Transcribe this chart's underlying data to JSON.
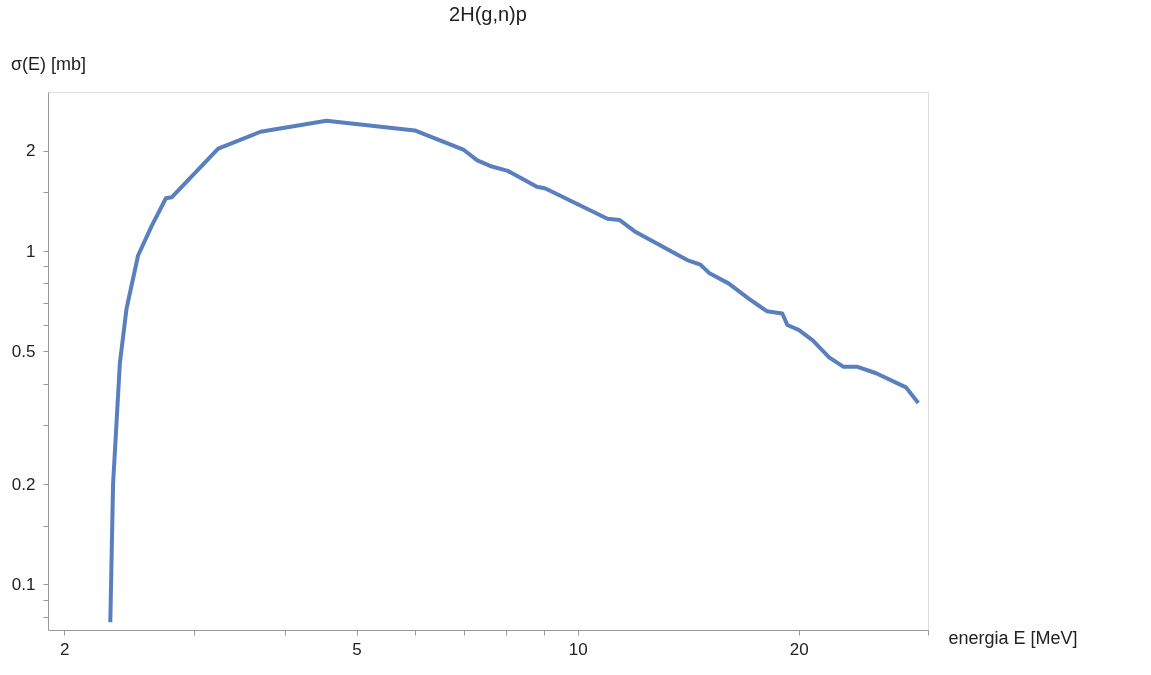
{
  "chart_data": {
    "type": "line",
    "title": "2H(g,n)p",
    "xlabel": "energia E [MeV]",
    "ylabel": "σ(E) [mb]",
    "log": "xy",
    "grid": false,
    "legend": false,
    "marker": "none",
    "line_style": "solid",
    "xlim": [
      1.9,
      30
    ],
    "ylim": [
      0.073,
      3
    ],
    "xticks": [
      2,
      {
        "value": 3,
        "label": null
      },
      {
        "value": 4,
        "label": null
      },
      5,
      {
        "value": 6,
        "label": null
      },
      {
        "value": 7,
        "label": null
      },
      {
        "value": 8,
        "label": null
      },
      {
        "value": 9,
        "label": null
      },
      10,
      20,
      {
        "value": 30,
        "label": null
      }
    ],
    "yticks": [
      {
        "value": 0.08,
        "label": null
      },
      {
        "value": 0.09,
        "label": null
      },
      0.1,
      {
        "value": 0.15,
        "label": null
      },
      0.2,
      {
        "value": 0.3,
        "label": null
      },
      {
        "value": 0.4,
        "label": null
      },
      0.5,
      {
        "value": 0.6,
        "label": null
      },
      {
        "value": 0.7,
        "label": null
      },
      {
        "value": 0.8,
        "label": null
      },
      {
        "value": 0.9,
        "label": null
      },
      1,
      {
        "value": 1.5,
        "label": null
      },
      2
    ],
    "series": [
      {
        "color": "#5a7fbf",
        "x": [
          2.31,
          2.33,
          2.36,
          2.38,
          2.43,
          2.52,
          2.63,
          2.75,
          2.8,
          3.24,
          3.7,
          4.55,
          6.0,
          7.0,
          7.3,
          7.6,
          8.03,
          8.8,
          9.04,
          10.98,
          11.4,
          12.0,
          14.1,
          14.7,
          15.1,
          16.05,
          17.1,
          18.1,
          19.0,
          19.3,
          20.0,
          20.9,
          22.0,
          23.0,
          24.0,
          25.5,
          28.0,
          29.1
        ],
        "values": [
          0.077,
          0.2,
          0.33,
          0.46,
          0.67,
          0.97,
          1.19,
          1.44,
          1.45,
          2.03,
          2.28,
          2.46,
          2.3,
          2.01,
          1.87,
          1.8,
          1.74,
          1.56,
          1.54,
          1.25,
          1.24,
          1.14,
          0.94,
          0.91,
          0.86,
          0.8,
          0.72,
          0.66,
          0.65,
          0.6,
          0.58,
          0.54,
          0.48,
          0.45,
          0.45,
          0.43,
          0.39,
          0.35
        ]
      }
    ]
  }
}
